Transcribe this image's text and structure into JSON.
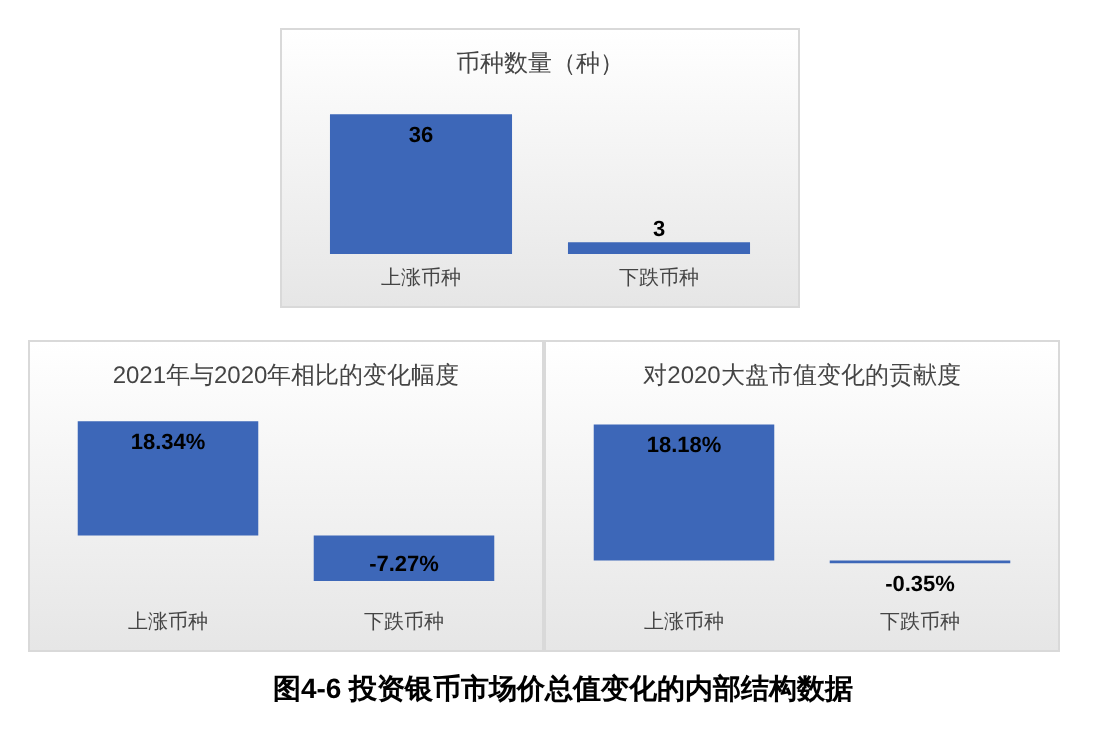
{
  "chart_data": [
    {
      "type": "bar",
      "title": "币种数量（种）",
      "categories": [
        "上涨币种",
        "下跌币种"
      ],
      "values": [
        36,
        3
      ],
      "color": "#3d67b8",
      "data_labels": true,
      "grid": false,
      "legend": false
    },
    {
      "type": "bar",
      "title": "2021年与2020年相比的变化幅度",
      "categories": [
        "上涨币种",
        "下跌币种"
      ],
      "values": [
        18.34,
        -7.27
      ],
      "value_labels": [
        "18.34%",
        "-7.27%"
      ],
      "color": "#3d67b8",
      "grid": false,
      "legend": false
    },
    {
      "type": "bar",
      "title": "对2020大盘市值变化的贡献度",
      "categories": [
        "上涨币种",
        "下跌币种"
      ],
      "values": [
        18.18,
        -0.35
      ],
      "value_labels": [
        "18.18%",
        "-0.35%"
      ],
      "color": "#3d67b8",
      "grid": false,
      "legend": false,
      "annotations": [
        "图4-6  投资银币市场价总值变化的内部结构数据"
      ]
    }
  ]
}
